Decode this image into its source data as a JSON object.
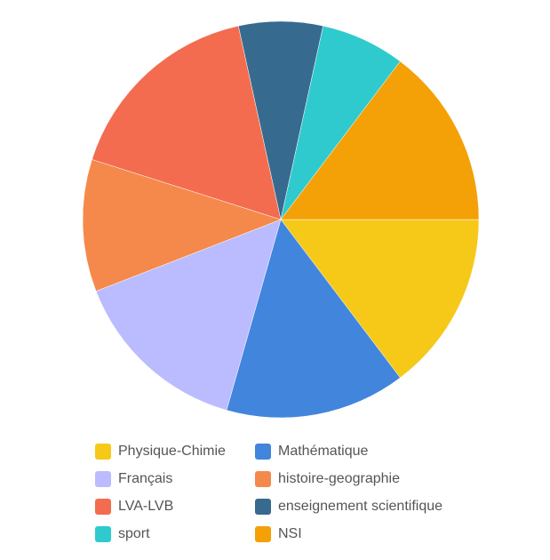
{
  "chart_data": {
    "type": "pie",
    "title": "",
    "categories": [
      "Physique-Chimie",
      "Mathématique",
      "Français",
      "histoire-geographie",
      "LVA-LVB",
      "enseignement scientifique",
      "sport",
      "NSI"
    ],
    "values": [
      15,
      15,
      15,
      11,
      17,
      7,
      7,
      15
    ],
    "colors": [
      "#F6C918",
      "#4285DD",
      "#BBBCFF",
      "#F5894B",
      "#F36C4F",
      "#376A8F",
      "#2FCACE",
      "#F4A007"
    ],
    "start_angle_deg": 0,
    "direction": "clockwise",
    "legend_position": "bottom"
  }
}
